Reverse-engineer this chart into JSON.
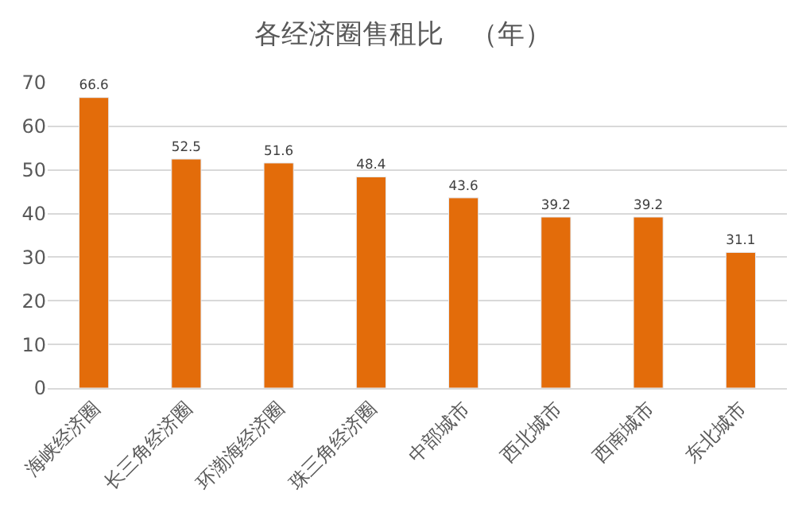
{
  "chart_data": {
    "type": "bar",
    "title": "各经济圈售租比　（年）",
    "categories": [
      "海峡经济圈",
      "长三角经济圈",
      "环渤海经济圈",
      "珠三角经济圈",
      "中部城市",
      "西北城市",
      "西南城市",
      "东北城市"
    ],
    "values": [
      66.6,
      52.5,
      51.6,
      48.4,
      43.6,
      39.2,
      39.2,
      31.1
    ],
    "color": "#e36c0a",
    "ylim": [
      0,
      70
    ],
    "yticks": [
      0,
      10,
      20,
      30,
      40,
      50,
      60,
      70
    ],
    "grid": "y",
    "data_labels": true
  }
}
